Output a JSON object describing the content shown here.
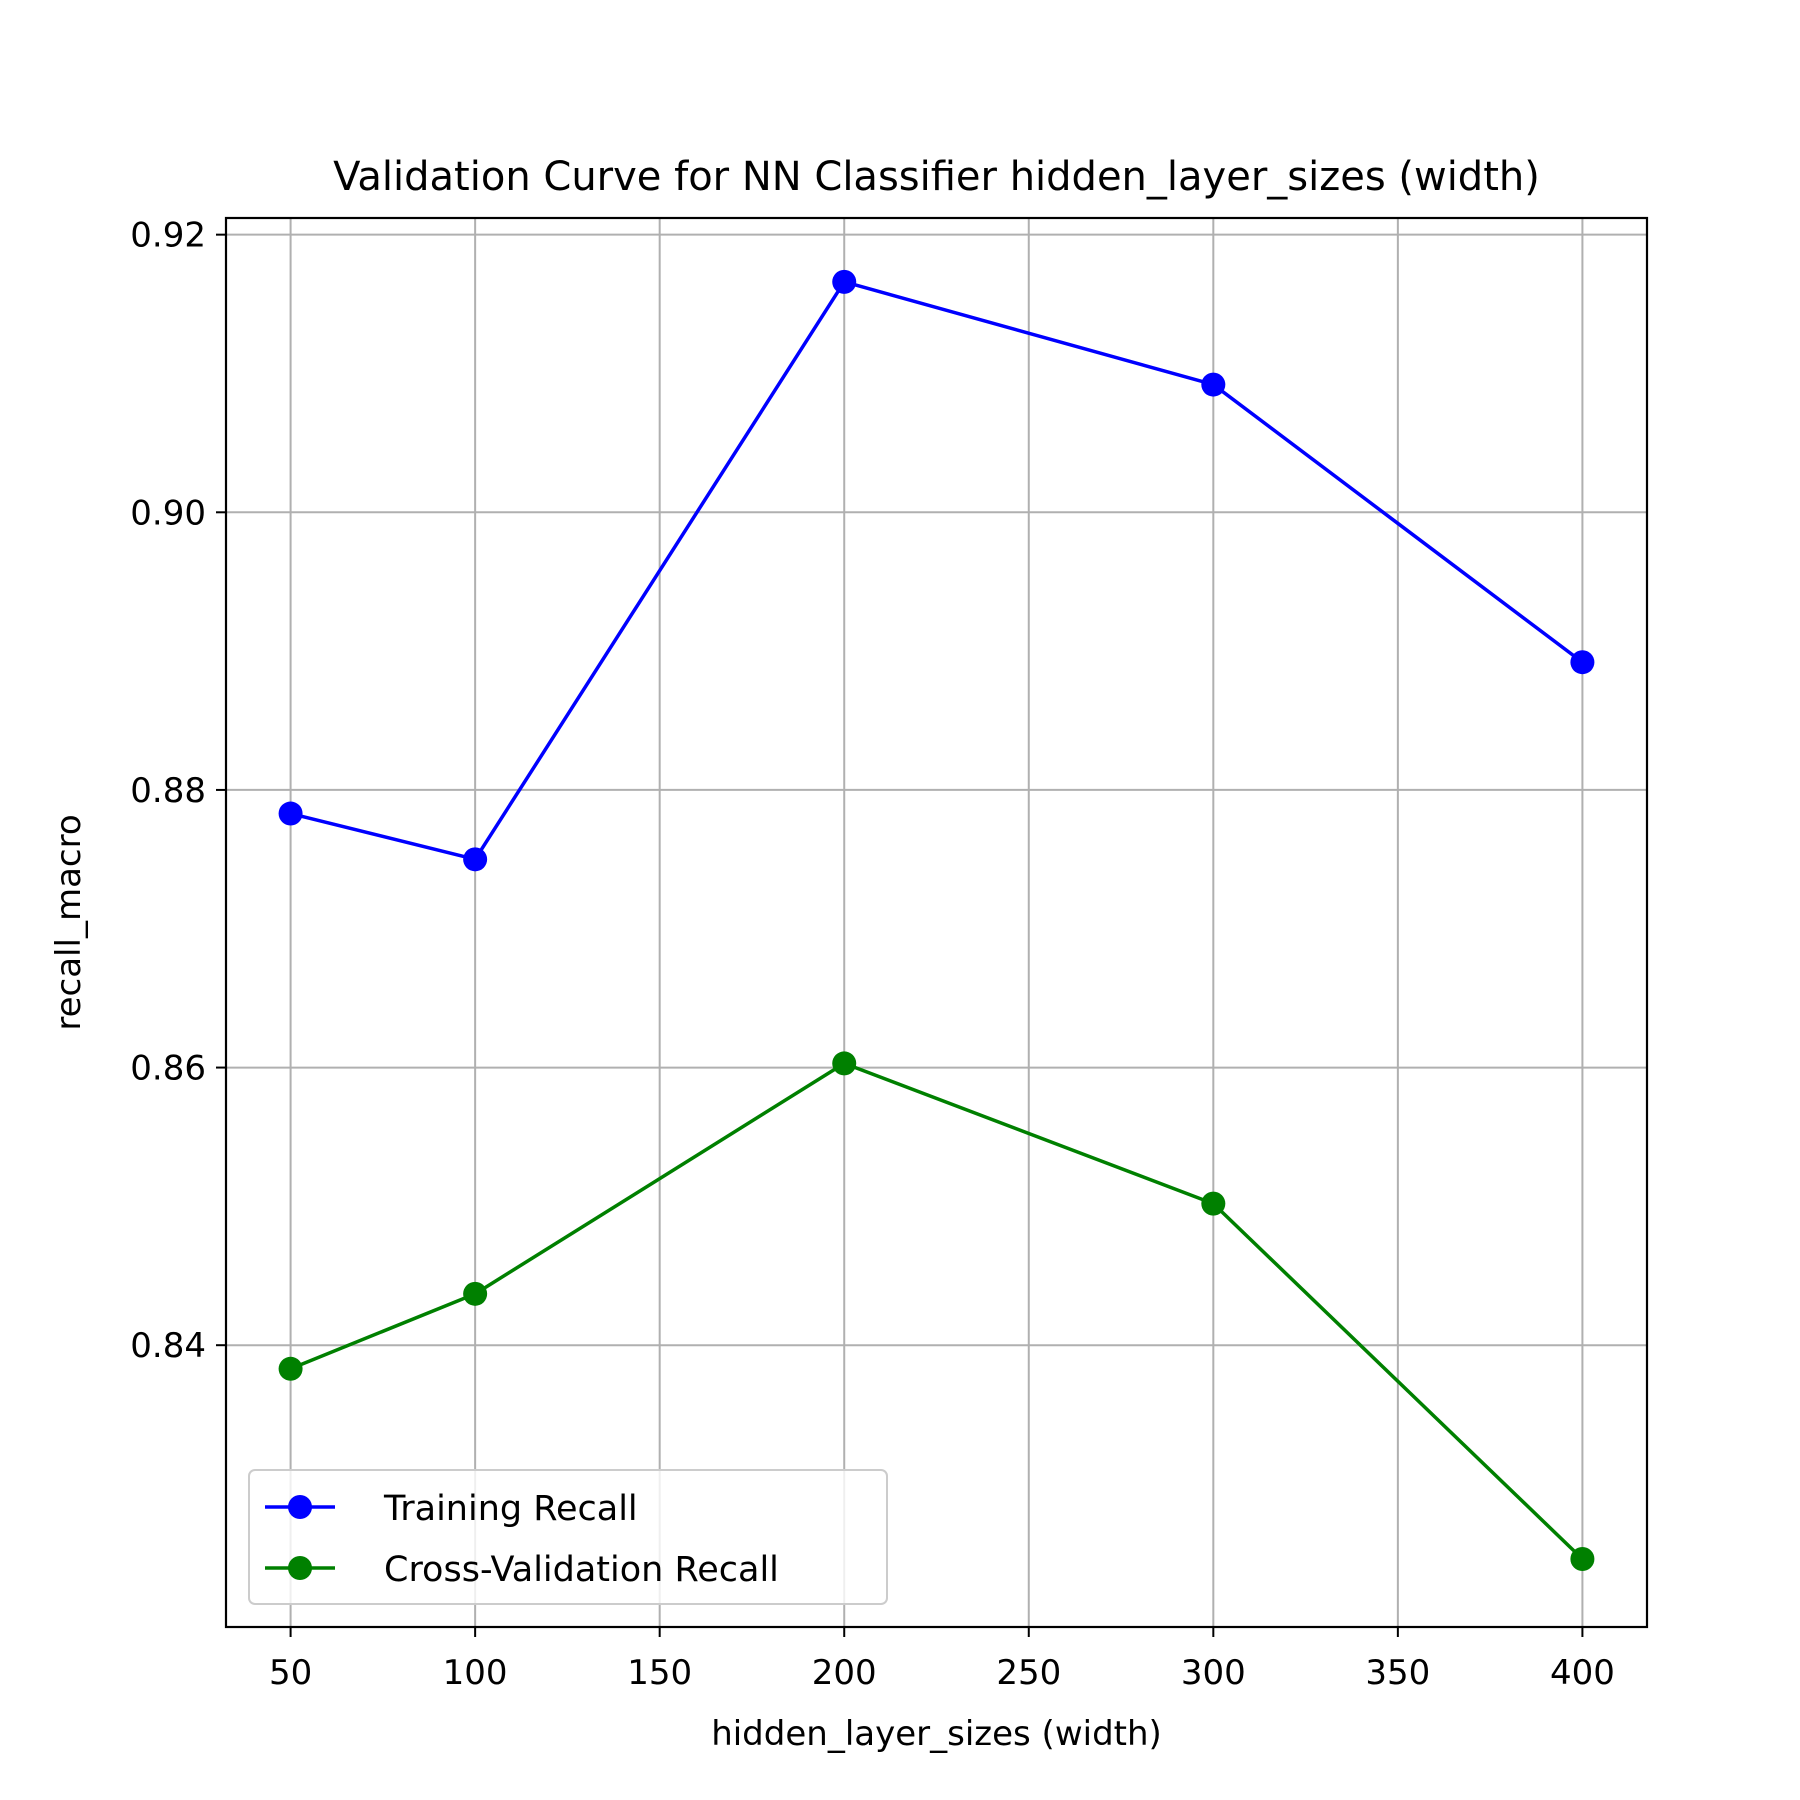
{
  "chart_data": {
    "type": "line",
    "title": "Validation Curve for NN Classifier hidden_layer_sizes (width)",
    "xlabel": "hidden_layer_sizes (width)",
    "ylabel": "recall_macro",
    "xlim": [
      32.5,
      417.5
    ],
    "ylim": [
      0.8197,
      0.9212
    ],
    "xticks": [
      50,
      100,
      150,
      200,
      250,
      300,
      350,
      400
    ],
    "xtick_labels": [
      "50",
      "100",
      "150",
      "200",
      "250",
      "300",
      "350",
      "400"
    ],
    "yticks": [
      0.84,
      0.86,
      0.88,
      0.9,
      0.92
    ],
    "ytick_labels": [
      "0.84",
      "0.86",
      "0.88",
      "0.90",
      "0.92"
    ],
    "grid": true,
    "legend_position": "lower-left",
    "x": [
      50,
      100,
      200,
      300,
      400
    ],
    "series": [
      {
        "name": "Training Recall",
        "color": "#0000ff",
        "marker": "circle",
        "values": [
          0.8783,
          0.875,
          0.9166,
          0.9092,
          0.8892
        ]
      },
      {
        "name": "Cross-Validation Recall",
        "color": "#008000",
        "marker": "circle",
        "values": [
          0.8383,
          0.8437,
          0.8603,
          0.8502,
          0.8246
        ]
      }
    ]
  }
}
